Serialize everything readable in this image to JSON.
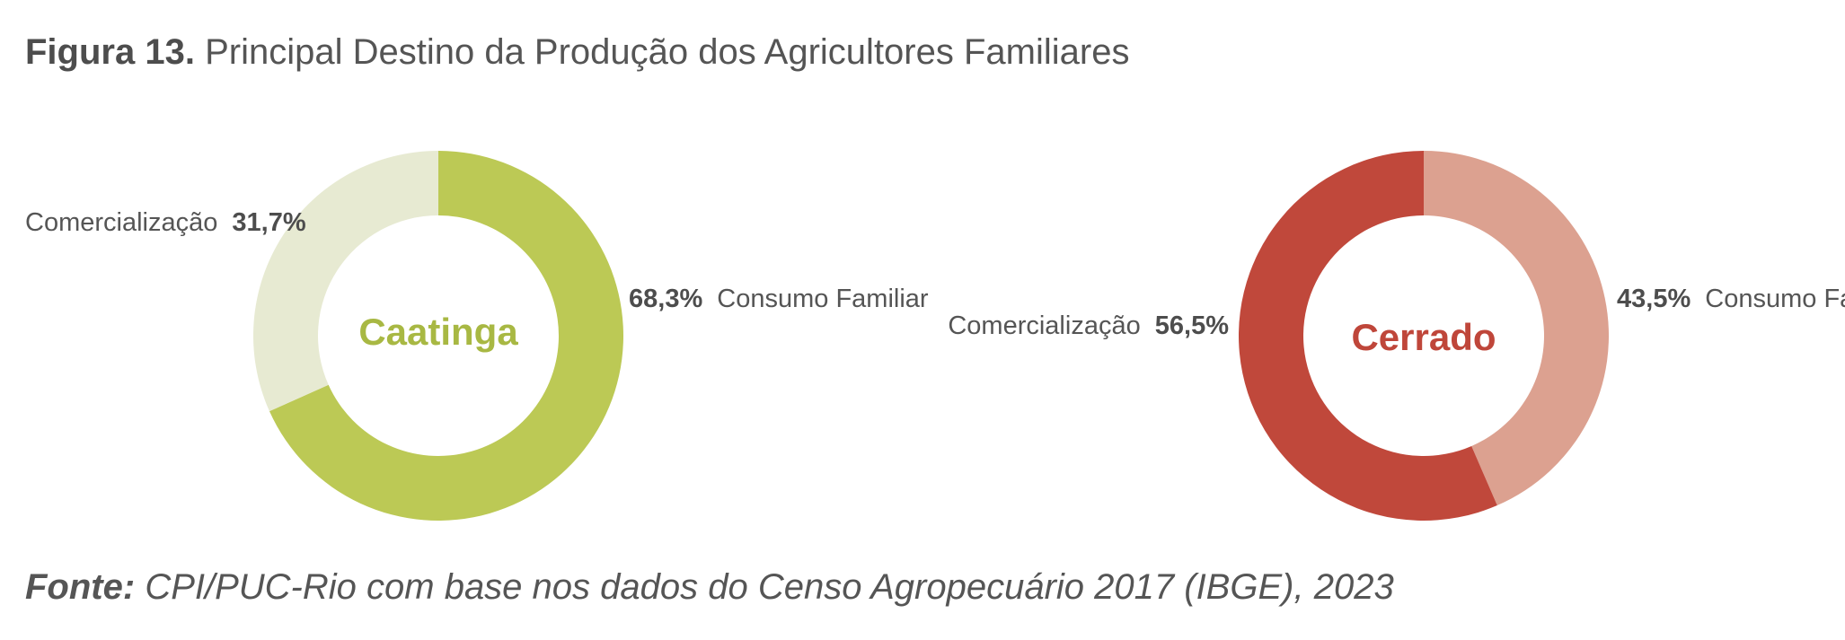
{
  "figure": {
    "number": "Figura 13.",
    "title": "Principal Destino da Produção dos Agricultores Familiares"
  },
  "source": {
    "lead": "Fonte:",
    "text": "CPI/PUC-Rio com base nos dados do Censo Agropecuário 2017 (IBGE), 2023"
  },
  "chart_data": [
    {
      "type": "pie",
      "style": "donut",
      "center_label": "Caatinga",
      "center_color": "#a8b843",
      "slices": [
        {
          "label": "Consumo Familiar",
          "value": 68.3,
          "value_text": "68,3%",
          "color": "#bcc955"
        },
        {
          "label": "Comercialização",
          "value": 31.7,
          "value_text": "31,7%",
          "color": "#e7ead2"
        }
      ]
    },
    {
      "type": "pie",
      "style": "donut",
      "center_label": "Cerrado",
      "center_color": "#bf463a",
      "slices": [
        {
          "label": "Consumo Familiar",
          "value": 43.5,
          "value_text": "43,5%",
          "color": "#dca190"
        },
        {
          "label": "Comercialização",
          "value": 56.5,
          "value_text": "56,5%",
          "color": "#c0483b"
        }
      ]
    }
  ]
}
